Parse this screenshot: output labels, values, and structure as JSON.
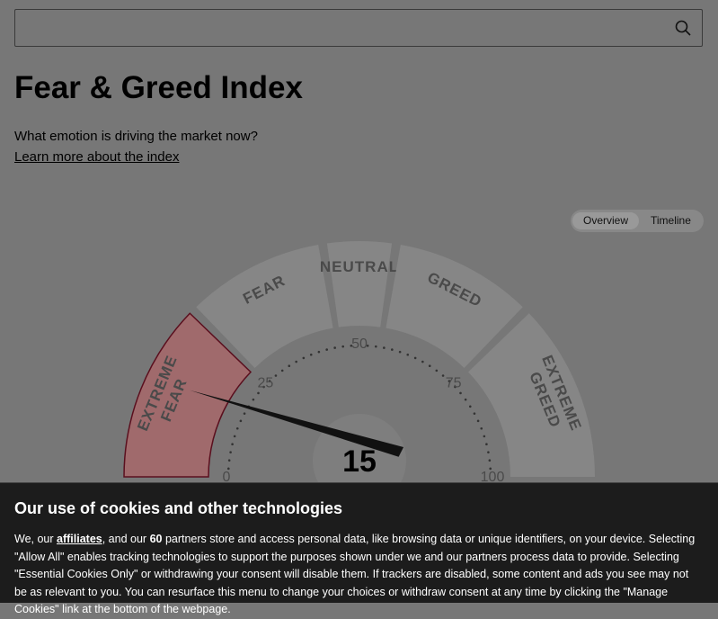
{
  "header": {
    "title": "Fear & Greed Index",
    "subtitle": "What emotion is driving the market now?",
    "link": "Learn more about the index"
  },
  "tabs": [
    "Overview",
    "Timeline"
  ],
  "gauge": {
    "value": 15,
    "scale": [
      0,
      25,
      50,
      75,
      100
    ],
    "segments": [
      {
        "label": "EXTREME FEAR",
        "from": 0,
        "to": 25
      },
      {
        "label": "FEAR",
        "from": 25,
        "to": 45
      },
      {
        "label": "NEUTRAL",
        "from": 45,
        "to": 55
      },
      {
        "label": "GREED",
        "from": 55,
        "to": 75
      },
      {
        "label": "EXTREME GREED",
        "from": 75,
        "to": 100
      }
    ]
  },
  "cookie": {
    "heading": "Our use of cookies and other technologies",
    "parts": [
      "We, our ",
      "affiliates",
      ", and our ",
      "60",
      " partners store and access personal data, like browsing data or unique identifiers, on your device. Selecting \"Allow All\" enables tracking technologies to support the purposes shown under we and our partners process data to provide. Selecting \"Essential Cookies Only\" or withdrawing your consent will disable them. If trackers are disabled, some content and ads you see may not be as relevant to you. You can resurface this menu to change your choices or withdraw consent at any time by clicking the \"Manage Cookies\" link at the bottom of the webpage."
    ]
  }
}
